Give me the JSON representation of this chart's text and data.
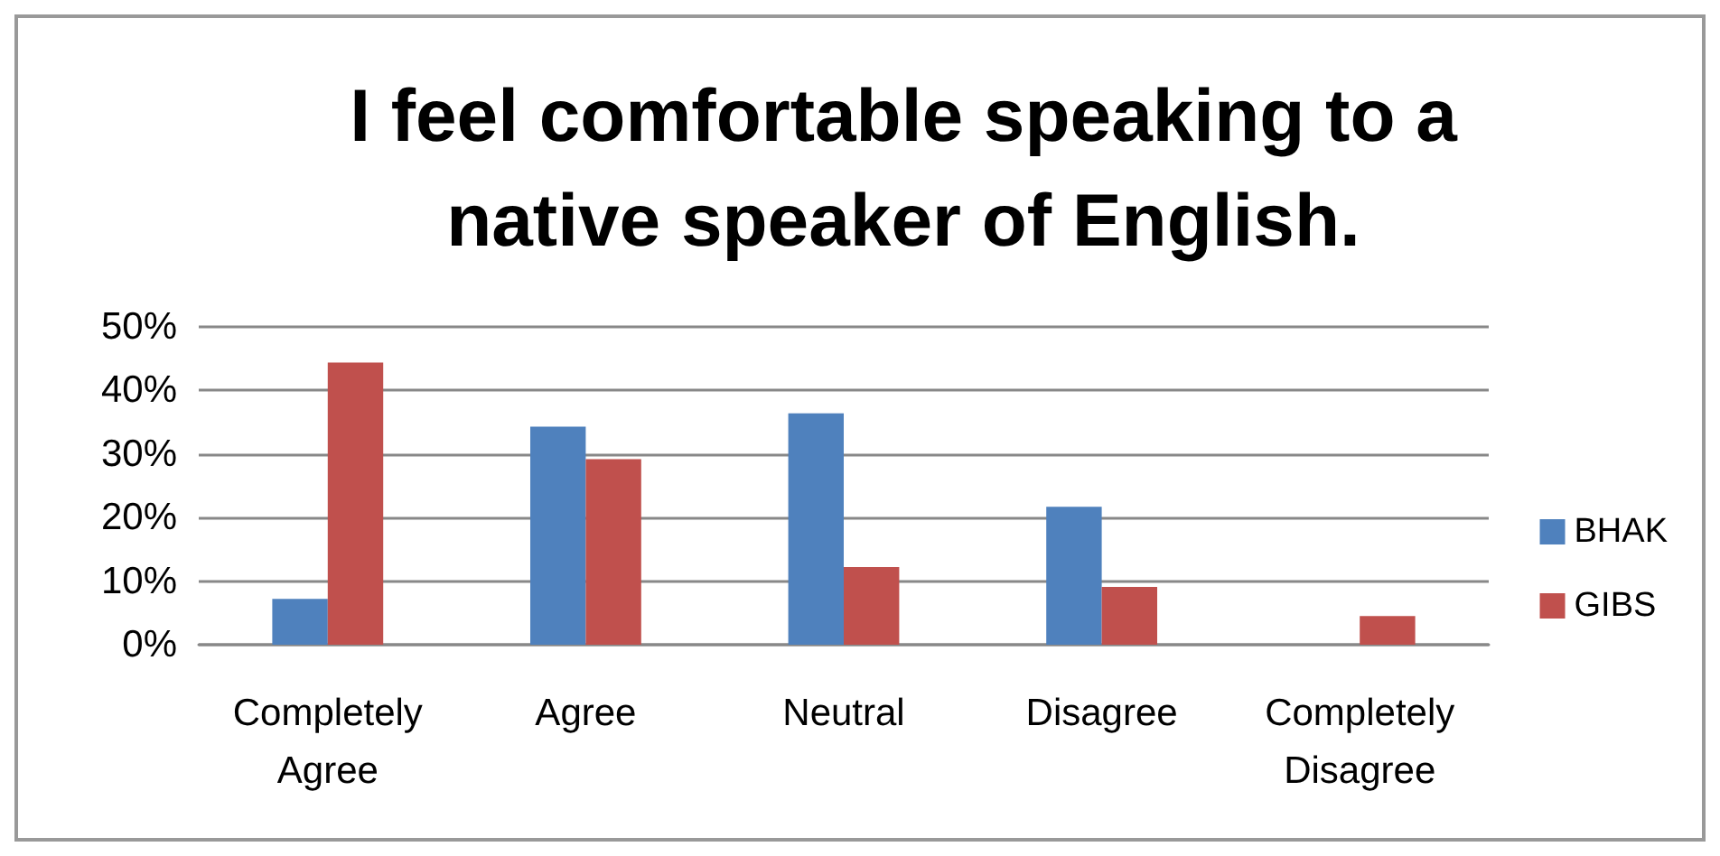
{
  "chart_data": {
    "type": "bar",
    "title": "I feel comfortable speaking to a\nnative speaker of English.",
    "categories": [
      "Completely\nAgree",
      "Agree",
      "Neutral",
      "Disagree",
      "Completely\nDisagree"
    ],
    "series": [
      {
        "name": "BHAK",
        "color": "#4f81bd",
        "values": [
          7.2,
          34.3,
          36.4,
          21.7,
          0
        ]
      },
      {
        "name": "GIBS",
        "color": "#c0504d",
        "values": [
          44.4,
          29.2,
          12.2,
          9.1,
          4.5
        ]
      }
    ],
    "ylim": [
      0,
      50
    ],
    "yticks": [
      {
        "value": 0,
        "label": "0%"
      },
      {
        "value": 10,
        "label": "10%"
      },
      {
        "value": 20,
        "label": "20%"
      },
      {
        "value": 30,
        "label": "30%"
      },
      {
        "value": 40,
        "label": "40%"
      },
      {
        "value": 50,
        "label": "50%"
      }
    ],
    "grid": "y",
    "legend": "right"
  }
}
